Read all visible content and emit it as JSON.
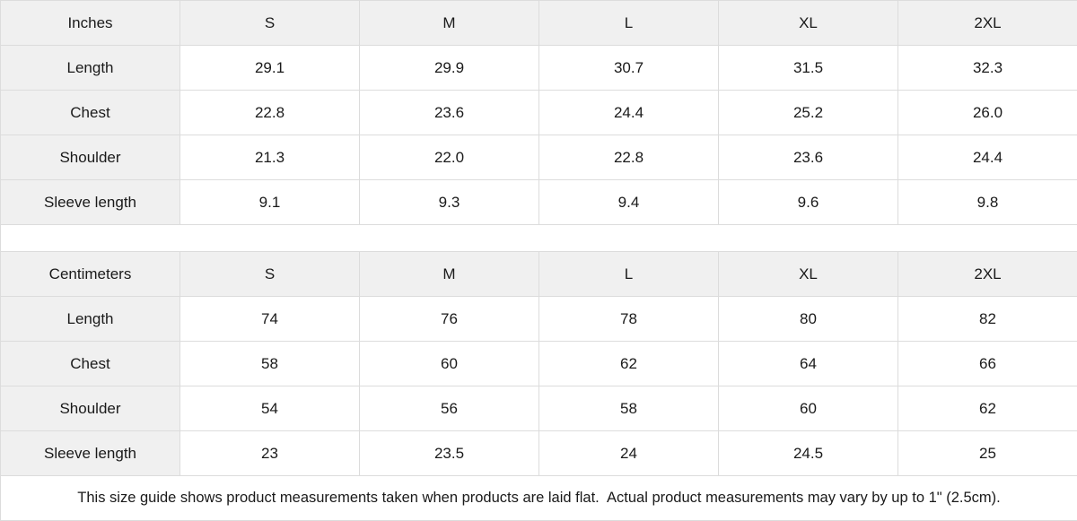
{
  "colors": {
    "header_bg": "#f0f0f0",
    "label_bg": "#f0f0f0",
    "cell_bg": "#ffffff",
    "border": "#dcdcdc",
    "text": "#1a1a1a"
  },
  "tables": [
    {
      "unit_label": "Inches",
      "sizes": [
        "S",
        "M",
        "L",
        "XL",
        "2XL"
      ],
      "rows": [
        {
          "label": "Length",
          "values": [
            "29.1",
            "29.9",
            "30.7",
            "31.5",
            "32.3"
          ]
        },
        {
          "label": "Chest",
          "values": [
            "22.8",
            "23.6",
            "24.4",
            "25.2",
            "26.0"
          ]
        },
        {
          "label": "Shoulder",
          "values": [
            "21.3",
            "22.0",
            "22.8",
            "23.6",
            "24.4"
          ]
        },
        {
          "label": "Sleeve length",
          "values": [
            "9.1",
            "9.3",
            "9.4",
            "9.6",
            "9.8"
          ]
        }
      ]
    },
    {
      "unit_label": "Centimeters",
      "sizes": [
        "S",
        "M",
        "L",
        "XL",
        "2XL"
      ],
      "rows": [
        {
          "label": "Length",
          "values": [
            "74",
            "76",
            "78",
            "80",
            "82"
          ]
        },
        {
          "label": "Chest",
          "values": [
            "58",
            "60",
            "62",
            "64",
            "66"
          ]
        },
        {
          "label": "Shoulder",
          "values": [
            "54",
            "56",
            "58",
            "60",
            "62"
          ]
        },
        {
          "label": "Sleeve length",
          "values": [
            "23",
            "23.5",
            "24",
            "24.5",
            "25"
          ]
        }
      ]
    }
  ],
  "footer": {
    "note": "This size guide shows product measurements taken when products are laid flat.  Actual product measurements may vary by up to 1\" (2.5cm)."
  }
}
